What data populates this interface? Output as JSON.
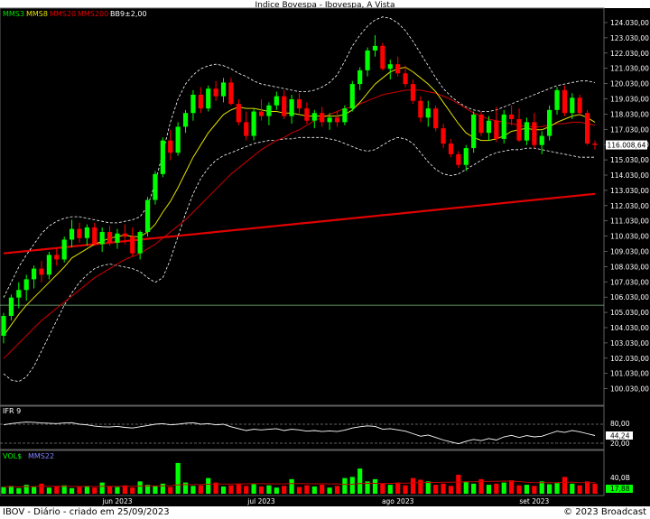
{
  "title": "Indice Bovespa - Ibovespa, A Vista",
  "legend": [
    {
      "label": "MMS3",
      "color": "#00e000"
    },
    {
      "label": "MMS8",
      "color": "#e0e000"
    },
    {
      "label": "MMS20",
      "color": "#e00000"
    },
    {
      "label": "MMS200",
      "color": "#e00000"
    },
    {
      "label": "BB9±2,00",
      "color": "#ffffff"
    }
  ],
  "footer": {
    "left": "IBOV - Diário - criado em 25/09/2023",
    "right": "© 2023 Broadcast"
  },
  "colors": {
    "up": "#00ff00",
    "down": "#ff0000",
    "mms8": "#e0e000",
    "mms20": "#d00000",
    "mms200": "#e00000",
    "bands": "#ffffff",
    "hline": "#80c080",
    "rsi": "#ffffff"
  },
  "price_axis": {
    "ticks": [
      "124.030,00",
      "123.030,00",
      "122.030,00",
      "121.030,00",
      "120.030,00",
      "119.030,00",
      "118.030,00",
      "117.030,00",
      "116.030,00",
      "115.030,00",
      "114.030,00",
      "113.030,00",
      "112.030,00",
      "111.030,00",
      "110.030,00",
      "109.030,00",
      "108.030,00",
      "107.030,00",
      "106.030,00",
      "105.030,00",
      "104.030,00",
      "103.030,00",
      "102.030,00",
      "101.030,00",
      "100.030,00"
    ],
    "last_value": "116.008,64"
  },
  "rsi_panel": {
    "label": "IFR 9",
    "ticks": [
      "80,00",
      "20,00"
    ],
    "last_value": "44,24"
  },
  "volume_panel": {
    "labels": [
      "VOL$",
      "MMS22"
    ],
    "label_colors": [
      "#00ff00",
      "#8080ff"
    ],
    "tick": "40,0B",
    "last_value": "17,88"
  },
  "date_labels": [
    "jun 2023",
    "jul 2023",
    "ago 2023",
    "set 2023"
  ],
  "chart_data": {
    "type": "candlestick",
    "ylim": [
      99500,
      124800
    ],
    "reference_line": 105500,
    "candles": [
      [
        103500,
        105000,
        103000,
        104800
      ],
      [
        104800,
        106200,
        104500,
        106000
      ],
      [
        106000,
        107000,
        105300,
        106500
      ],
      [
        106500,
        107500,
        105800,
        107200
      ],
      [
        107200,
        108100,
        106600,
        107900
      ],
      [
        107900,
        108400,
        107000,
        107500
      ],
      [
        107500,
        109000,
        107200,
        108800
      ],
      [
        108800,
        109300,
        108100,
        108500
      ],
      [
        108500,
        110000,
        108300,
        109800
      ],
      [
        109800,
        111100,
        109300,
        110500
      ],
      [
        110500,
        110900,
        109600,
        109900
      ],
      [
        109900,
        110800,
        109400,
        110600
      ],
      [
        110600,
        110900,
        109400,
        109500
      ],
      [
        109500,
        110600,
        109000,
        110300
      ],
      [
        110300,
        110700,
        109400,
        109600
      ],
      [
        109600,
        110500,
        109200,
        110200
      ],
      [
        110200,
        110800,
        109500,
        110000
      ],
      [
        110000,
        110600,
        108700,
        108900
      ],
      [
        108900,
        110400,
        108500,
        110300
      ],
      [
        110300,
        112600,
        110000,
        112400
      ],
      [
        112400,
        114300,
        112100,
        114100
      ],
      [
        114100,
        116500,
        113900,
        116300
      ],
      [
        116300,
        117000,
        115000,
        115500
      ],
      [
        115500,
        117500,
        115300,
        117200
      ],
      [
        117200,
        118300,
        116800,
        118100
      ],
      [
        118100,
        119600,
        117600,
        119300
      ],
      [
        119300,
        119800,
        118100,
        118400
      ],
      [
        118400,
        119900,
        118200,
        119700
      ],
      [
        119700,
        120200,
        118900,
        119200
      ],
      [
        119200,
        120400,
        118800,
        120100
      ],
      [
        120100,
        120400,
        118600,
        118700
      ],
      [
        118700,
        119000,
        117300,
        117500
      ],
      [
        117500,
        118200,
        116300,
        116600
      ],
      [
        116600,
        118400,
        116300,
        118200
      ],
      [
        118200,
        119000,
        117600,
        117900
      ],
      [
        117900,
        118800,
        117300,
        118600
      ],
      [
        118600,
        119500,
        118300,
        119200
      ],
      [
        119200,
        119600,
        117700,
        117900
      ],
      [
        117900,
        119300,
        117400,
        119000
      ],
      [
        119000,
        119400,
        118100,
        118400
      ],
      [
        118400,
        118800,
        117400,
        117600
      ],
      [
        117600,
        118300,
        117100,
        118100
      ],
      [
        118100,
        118500,
        117200,
        117500
      ],
      [
        117500,
        118100,
        117000,
        117800
      ],
      [
        117800,
        118200,
        117200,
        117500
      ],
      [
        117500,
        118600,
        117300,
        118400
      ],
      [
        118400,
        120200,
        118200,
        120000
      ],
      [
        120000,
        121100,
        119600,
        120900
      ],
      [
        120900,
        122400,
        120500,
        122200
      ],
      [
        122200,
        123200,
        121800,
        122500
      ],
      [
        122500,
        122700,
        120900,
        121000
      ],
      [
        121000,
        121600,
        120300,
        121300
      ],
      [
        121300,
        121800,
        120500,
        120700
      ],
      [
        120700,
        121200,
        119800,
        120000
      ],
      [
        120000,
        120300,
        118700,
        118900
      ],
      [
        118900,
        119200,
        117500,
        117800
      ],
      [
        117800,
        118900,
        117200,
        118400
      ],
      [
        118400,
        118600,
        116900,
        117100
      ],
      [
        117100,
        117400,
        115800,
        116100
      ],
      [
        116100,
        116400,
        115200,
        115400
      ],
      [
        115400,
        115600,
        114500,
        114700
      ],
      [
        114700,
        116000,
        114300,
        115800
      ],
      [
        115800,
        118200,
        115500,
        118000
      ],
      [
        118000,
        118200,
        116600,
        116800
      ],
      [
        116800,
        117900,
        116300,
        117600
      ],
      [
        117600,
        118500,
        116200,
        116400
      ],
      [
        116400,
        118300,
        116100,
        118000
      ],
      [
        118000,
        118600,
        117300,
        117700
      ],
      [
        117700,
        118400,
        116200,
        116300
      ],
      [
        116300,
        117800,
        116000,
        117500
      ],
      [
        117500,
        118100,
        115800,
        116000
      ],
      [
        116000,
        116900,
        115400,
        116600
      ],
      [
        116600,
        118600,
        116300,
        118300
      ],
      [
        118300,
        119800,
        118000,
        119600
      ],
      [
        119600,
        119900,
        117900,
        118100
      ],
      [
        118100,
        119400,
        117700,
        119100
      ],
      [
        119100,
        119300,
        117900,
        118100
      ],
      [
        118100,
        118300,
        116000,
        116100
      ],
      [
        116100,
        116300,
        115700,
        116009
      ]
    ],
    "mms8": [
      103500,
      104200,
      104900,
      105500,
      106000,
      106500,
      107000,
      107500,
      108000,
      108600,
      108900,
      109200,
      109500,
      109700,
      109900,
      110000,
      110100,
      110000,
      110000,
      110300,
      110800,
      111600,
      112300,
      113200,
      114200,
      115200,
      116000,
      116800,
      117400,
      118000,
      118300,
      118500,
      118400,
      118400,
      118300,
      118200,
      118200,
      118100,
      118100,
      118000,
      117900,
      117900,
      117900,
      117900,
      117900,
      118000,
      118300,
      118800,
      119400,
      120000,
      120400,
      120800,
      121000,
      121100,
      120800,
      120400,
      120000,
      119500,
      118800,
      118100,
      117400,
      116800,
      116500,
      116300,
      116300,
      116400,
      116600,
      116900,
      117000,
      117100,
      117000,
      117000,
      117200,
      117500,
      117700,
      117900,
      118000,
      117800,
      117500
    ],
    "mms20": [
      102000,
      102500,
      103000,
      103500,
      104000,
      104500,
      104900,
      105300,
      105700,
      106100,
      106500,
      106900,
      107300,
      107600,
      107900,
      108200,
      108500,
      108700,
      108900,
      109200,
      109500,
      109900,
      110300,
      110700,
      111100,
      111600,
      112100,
      112600,
      113100,
      113600,
      114100,
      114500,
      114900,
      115300,
      115700,
      116000,
      116300,
      116500,
      116800,
      117000,
      117300,
      117600,
      117800,
      118000,
      118200,
      118400,
      118500,
      118700,
      118900,
      119100,
      119300,
      119400,
      119500,
      119600,
      119600,
      119600,
      119500,
      119400,
      119200,
      119000,
      118700,
      118400,
      118100,
      117900,
      117700,
      117600,
      117500,
      117400,
      117300,
      117200,
      117200,
      117200,
      117300,
      117400,
      117400,
      117500,
      117500,
      117400,
      117300
    ],
    "mms200": [
      108900,
      108950,
      109000,
      109050,
      109100,
      109150,
      109200,
      109250,
      109300,
      109350,
      109400,
      109450,
      109500,
      109550,
      109600,
      109650,
      109700,
      109750,
      109800,
      109850,
      109900,
      109950,
      110000,
      110050,
      110100,
      110150,
      110200,
      110250,
      110300,
      110350,
      110400,
      110450,
      110500,
      110550,
      110600,
      110650,
      110700,
      110750,
      110800,
      110850,
      110900,
      110950,
      111000,
      111050,
      111100,
      111150,
      111200,
      111250,
      111300,
      111350,
      111400,
      111450,
      111500,
      111550,
      111600,
      111650,
      111700,
      111750,
      111800,
      111850,
      111900,
      111950,
      112000,
      112050,
      112100,
      112150,
      112200,
      112250,
      112300,
      112350,
      112400,
      112450,
      112500,
      112550,
      112600,
      112650,
      112700,
      112750,
      112800
    ],
    "bb_upper": [
      106000,
      107000,
      108000,
      108800,
      109500,
      110200,
      110700,
      111000,
      111200,
      111300,
      111300,
      111200,
      111100,
      111000,
      110900,
      110900,
      111000,
      111100,
      111300,
      112000,
      113500,
      115500,
      117500,
      119000,
      120000,
      120600,
      121000,
      121200,
      121300,
      121200,
      121000,
      120700,
      120500,
      120200,
      120000,
      119900,
      119800,
      119700,
      119600,
      119500,
      119500,
      119600,
      119800,
      120100,
      120600,
      121500,
      122500,
      123200,
      123800,
      124200,
      124400,
      124300,
      124000,
      123500,
      122800,
      122000,
      121200,
      120400,
      119700,
      119200,
      118800,
      118500,
      118300,
      118200,
      118200,
      118300,
      118500,
      118700,
      118900,
      119100,
      119300,
      119500,
      119700,
      119900,
      120000,
      120100,
      120200,
      120200,
      120100
    ],
    "bb_lower": [
      101000,
      100600,
      100500,
      100800,
      101500,
      102500,
      103500,
      104500,
      105500,
      106300,
      107000,
      107500,
      107900,
      108100,
      108200,
      108100,
      108000,
      107900,
      107700,
      107300,
      107000,
      107300,
      108500,
      110000,
      111500,
      112800,
      113800,
      114500,
      115000,
      115300,
      115500,
      115700,
      115900,
      116100,
      116200,
      116300,
      116300,
      116400,
      116400,
      116500,
      116500,
      116500,
      116500,
      116400,
      116300,
      116100,
      115900,
      115700,
      115600,
      115700,
      116000,
      116300,
      116500,
      116400,
      116100,
      115500,
      114900,
      114400,
      114100,
      114000,
      114100,
      114400,
      114700,
      115000,
      115300,
      115500,
      115600,
      115700,
      115700,
      115800,
      115800,
      115700,
      115600,
      115500,
      115400,
      115300,
      115200,
      115200,
      115200
    ],
    "rsi": [
      78,
      82,
      85,
      87,
      86,
      84,
      83,
      82,
      84,
      85,
      80,
      78,
      74,
      72,
      71,
      73,
      70,
      68,
      72,
      76,
      80,
      82,
      78,
      80,
      83,
      85,
      80,
      82,
      78,
      80,
      72,
      66,
      60,
      64,
      62,
      64,
      66,
      60,
      64,
      62,
      58,
      60,
      57,
      59,
      57,
      61,
      68,
      72,
      75,
      73,
      64,
      66,
      62,
      58,
      50,
      42,
      46,
      38,
      30,
      24,
      18,
      26,
      32,
      28,
      35,
      30,
      40,
      45,
      38,
      44,
      40,
      42,
      50,
      58,
      54,
      60,
      56,
      50,
      44.24
    ],
    "volume": [
      12,
      14,
      10,
      16,
      12,
      18,
      11,
      13,
      15,
      10,
      12,
      14,
      11,
      20,
      13,
      12,
      15,
      11,
      22,
      16,
      14,
      18,
      12,
      55,
      20,
      14,
      15,
      28,
      20,
      13,
      15,
      18,
      14,
      17,
      13,
      15,
      11,
      14,
      26,
      12,
      15,
      13,
      16,
      11,
      14,
      28,
      30,
      45,
      22,
      26,
      18,
      16,
      20,
      15,
      28,
      25,
      22,
      16,
      18,
      14,
      34,
      22,
      18,
      26,
      16,
      18,
      20,
      24,
      15,
      16,
      14,
      22,
      17,
      19,
      30,
      18,
      15,
      22,
      18
    ]
  }
}
